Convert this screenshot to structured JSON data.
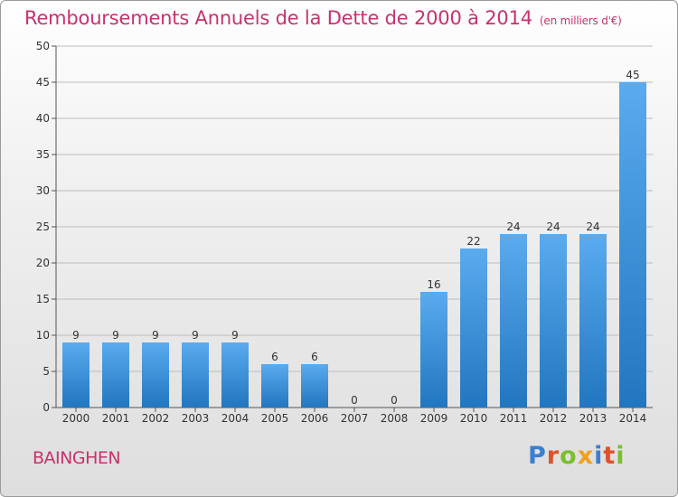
{
  "title": "Remboursements Annuels de la Dette de 2000 à 2014",
  "unit": "(en milliers d'€)",
  "commune": "BAINGHEN",
  "logo": {
    "text": "Proxiti",
    "colors": [
      "#3a7fd0",
      "#e0512a",
      "#7bbf2f",
      "#f0a020",
      "#3a7fd0",
      "#e0512a",
      "#7bbf2f"
    ]
  },
  "colors": {
    "bar_top": "#5aabef",
    "bar_bottom": "#2276bf",
    "title": "#c8326e"
  },
  "chart_data": {
    "type": "bar",
    "title": "Remboursements Annuels de la Dette de 2000 à 2014",
    "xlabel": "",
    "ylabel": "",
    "categories": [
      "2000",
      "2001",
      "2002",
      "2003",
      "2004",
      "2005",
      "2006",
      "2007",
      "2008",
      "2009",
      "2010",
      "2011",
      "2012",
      "2013",
      "2014"
    ],
    "values": [
      9,
      9,
      9,
      9,
      9,
      6,
      6,
      0,
      0,
      16,
      22,
      24,
      24,
      24,
      45
    ],
    "ylim": [
      0,
      50
    ],
    "yticks": [
      0,
      5,
      10,
      15,
      20,
      25,
      30,
      35,
      40,
      45,
      50
    ],
    "grid": true
  }
}
